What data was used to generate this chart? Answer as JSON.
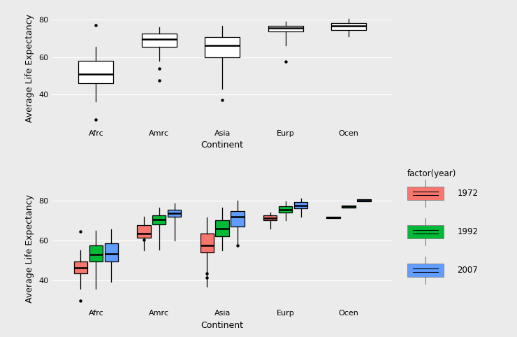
{
  "continents": [
    "Afrc",
    "Amrc",
    "Asia",
    "Eurp",
    "Ocen"
  ],
  "bg_color": "#EBEBEB",
  "grid_color": "#FFFFFF",
  "axis_label_fontsize": 9,
  "tick_fontsize": 8,
  "top_panel": {
    "ylabel": "Average Life Expectancy",
    "xlabel": "Continent",
    "ylim": [
      23,
      85
    ],
    "yticks": [
      40,
      60,
      80
    ],
    "boxes": {
      "Afrc": {
        "q1": 46.0,
        "median": 51.0,
        "q3": 58.0,
        "whislo": 36.5,
        "whishi": 65.5,
        "fliers": [
          26.5,
          77.0
        ]
      },
      "Amrc": {
        "q1": 65.5,
        "median": 69.5,
        "q3": 72.5,
        "whislo": 58.0,
        "whishi": 75.8,
        "fliers": [
          47.5,
          54.0
        ]
      },
      "Asia": {
        "q1": 60.0,
        "median": 66.0,
        "q3": 70.5,
        "whislo": 43.0,
        "whishi": 76.5,
        "fliers": [
          37.0
        ]
      },
      "Eurp": {
        "q1": 73.5,
        "median": 75.5,
        "q3": 76.5,
        "whislo": 66.0,
        "whishi": 79.0,
        "fliers": [
          57.5
        ]
      },
      "Ocen": {
        "q1": 74.5,
        "median": 76.5,
        "q3": 78.0,
        "whislo": 71.0,
        "whishi": 80.5,
        "fliers": []
      }
    }
  },
  "bottom_panel": {
    "ylabel": "Average Life Expectancy",
    "xlabel": "Continent",
    "ylim": [
      27,
      85
    ],
    "yticks": [
      40,
      60,
      80
    ],
    "years": [
      "1972",
      "1992",
      "2007"
    ],
    "year_colors": [
      "#F8766D",
      "#00BA38",
      "#619CFF"
    ],
    "boxes": {
      "Afrc": {
        "1972": {
          "q1": 43.5,
          "median": 46.5,
          "q3": 49.5,
          "whislo": 36.0,
          "whishi": 55.0,
          "fliers": [
            30.0,
            64.5
          ]
        },
        "1992": {
          "q1": 49.5,
          "median": 53.0,
          "q3": 57.5,
          "whislo": 36.0,
          "whishi": 65.0,
          "fliers": []
        },
        "2007": {
          "q1": 49.5,
          "median": 53.5,
          "q3": 58.5,
          "whislo": 39.5,
          "whishi": 65.5,
          "fliers": []
        }
      },
      "Amrc": {
        "1972": {
          "q1": 61.5,
          "median": 63.5,
          "q3": 67.5,
          "whislo": 55.0,
          "whishi": 72.0,
          "fliers": [
            60.5
          ]
        },
        "1992": {
          "q1": 68.0,
          "median": 70.5,
          "q3": 72.5,
          "whislo": 55.5,
          "whishi": 76.5,
          "fliers": []
        },
        "2007": {
          "q1": 72.0,
          "median": 73.5,
          "q3": 75.5,
          "whislo": 60.0,
          "whishi": 78.5,
          "fliers": []
        }
      },
      "Asia": {
        "1972": {
          "q1": 54.0,
          "median": 57.5,
          "q3": 63.5,
          "whislo": 37.0,
          "whishi": 71.5,
          "fliers": [
            41.5,
            43.5
          ]
        },
        "1992": {
          "q1": 62.0,
          "median": 66.0,
          "q3": 70.0,
          "whislo": 55.0,
          "whishi": 76.5,
          "fliers": []
        },
        "2007": {
          "q1": 67.0,
          "median": 72.0,
          "q3": 74.5,
          "whislo": 58.0,
          "whishi": 80.0,
          "fliers": [
            57.5
          ]
        }
      },
      "Eurp": {
        "1972": {
          "q1": 70.0,
          "median": 71.0,
          "q3": 72.5,
          "whislo": 66.0,
          "whishi": 74.0,
          "fliers": []
        },
        "1992": {
          "q1": 74.0,
          "median": 75.5,
          "q3": 77.0,
          "whislo": 70.0,
          "whishi": 79.5,
          "fliers": []
        },
        "2007": {
          "q1": 76.0,
          "median": 77.5,
          "q3": 79.0,
          "whislo": 72.0,
          "whishi": 81.0,
          "fliers": []
        }
      },
      "Ocen": {
        "1972": {
          "q1": 71.0,
          "median": 71.5,
          "q3": 72.0,
          "whislo": 71.0,
          "whishi": 72.0,
          "fliers": []
        },
        "1992": {
          "q1": 76.5,
          "median": 77.0,
          "q3": 77.5,
          "whislo": 76.5,
          "whishi": 77.5,
          "fliers": []
        },
        "2007": {
          "q1": 79.5,
          "median": 80.0,
          "q3": 80.5,
          "whislo": 79.5,
          "whishi": 80.5,
          "fliers": []
        }
      }
    }
  }
}
